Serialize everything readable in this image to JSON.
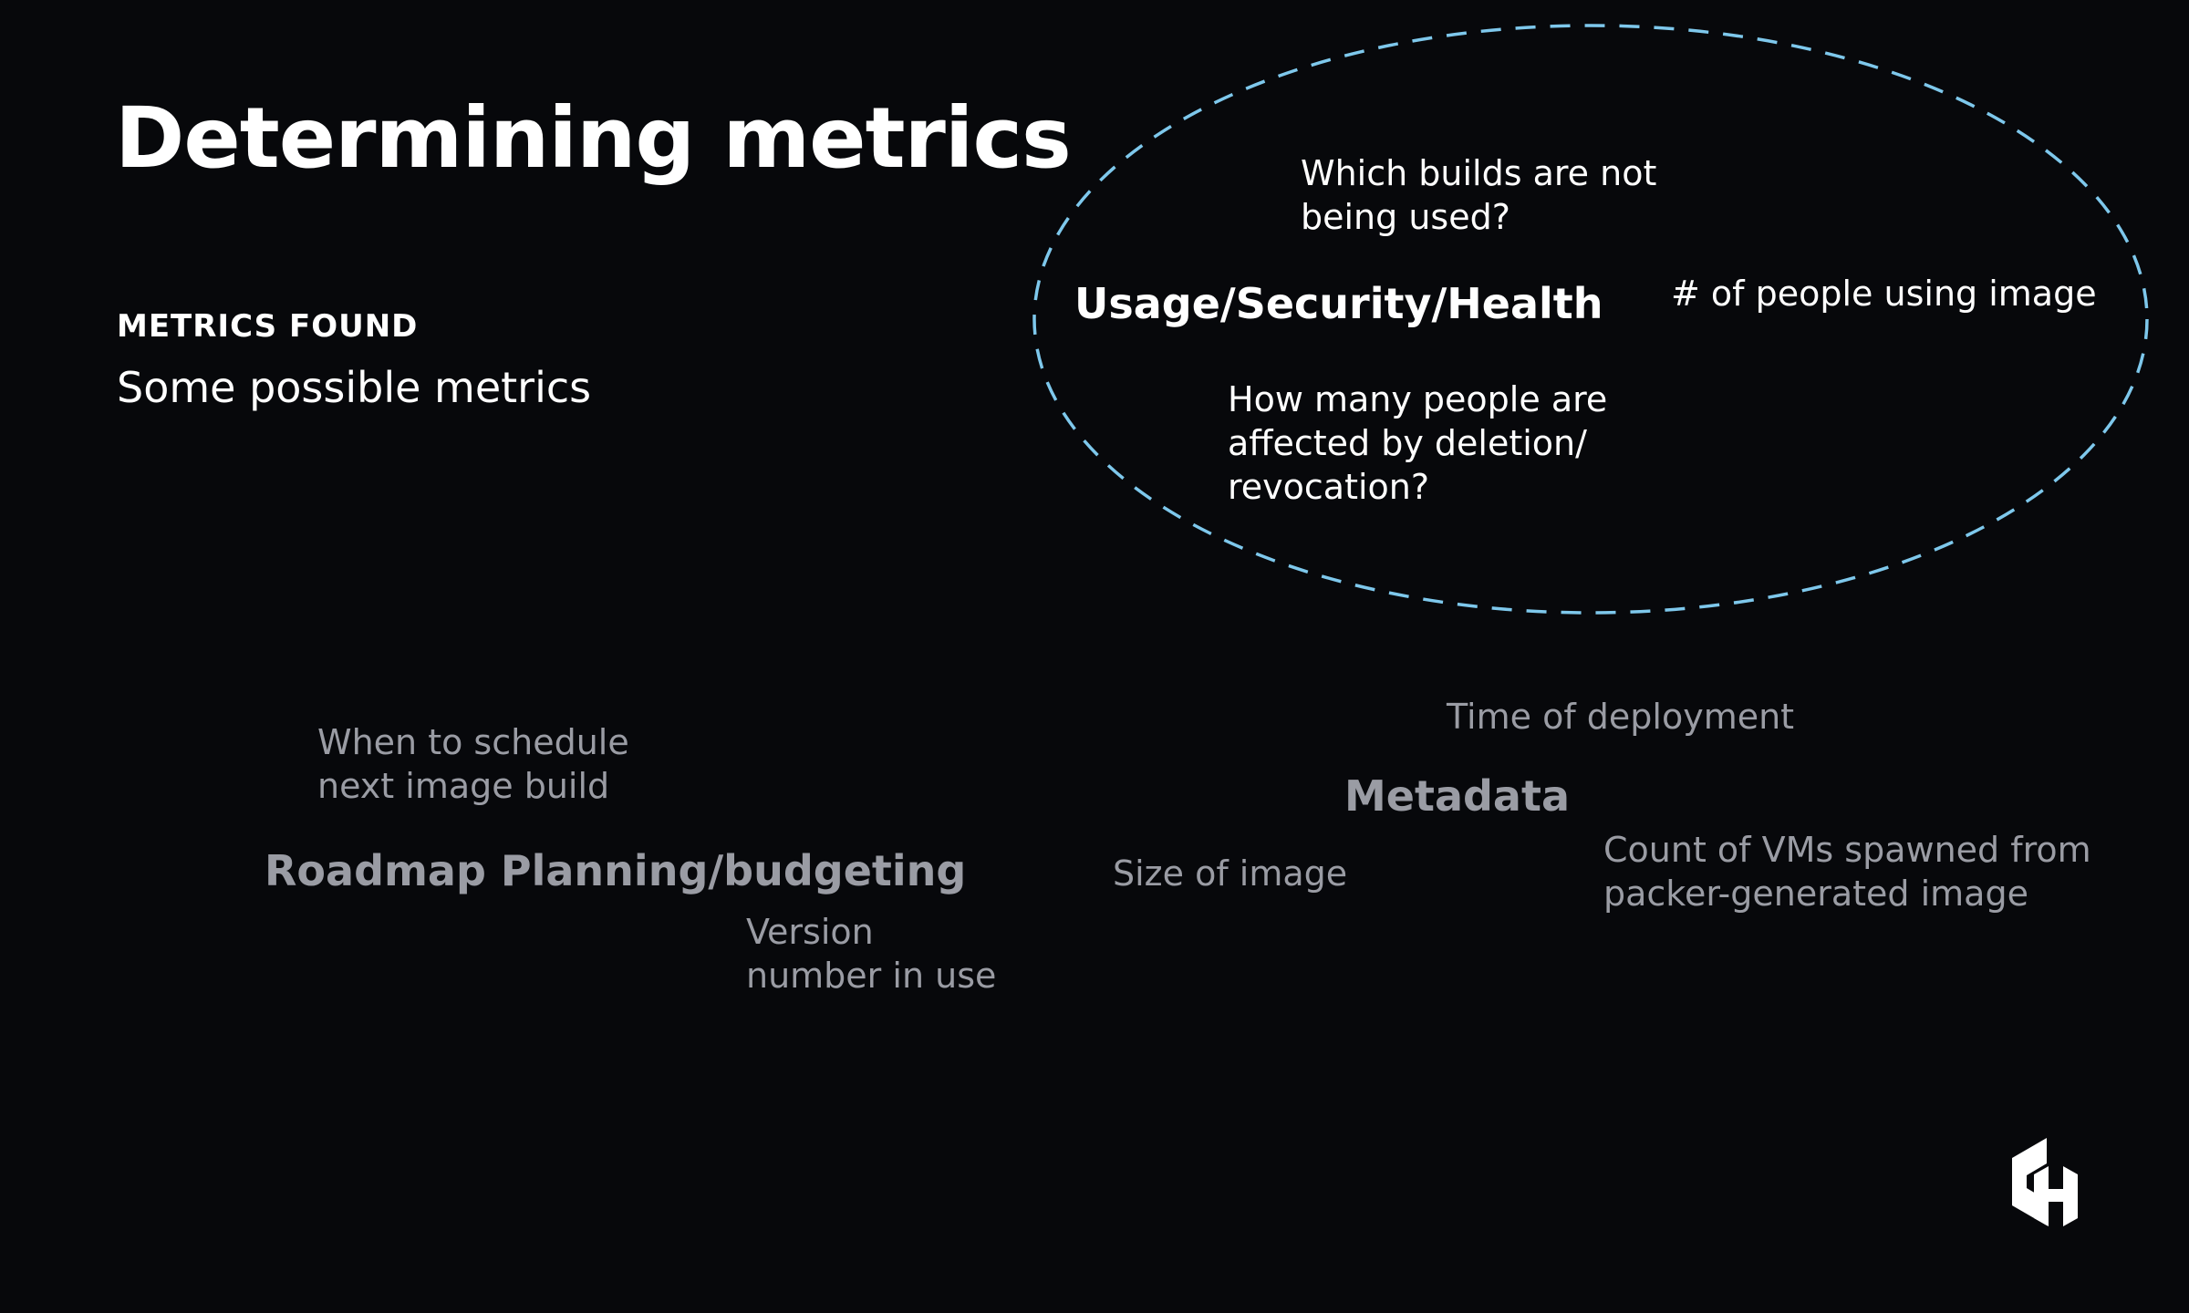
{
  "slide": {
    "title": "Determining metrics",
    "section_label": "METRICS FOUND",
    "section_subtitle": "Some possible metrics"
  },
  "usage_group": {
    "heading": "Usage/Security/Health",
    "items": [
      "Which builds are not\nbeing used?",
      "# of people using image",
      "How many people are\naffected by deletion/\nrevocation?"
    ]
  },
  "roadmap_group": {
    "heading": "Roadmap Planning/budgeting",
    "items": [
      "When to schedule\nnext image build",
      "Version\nnumber in use"
    ]
  },
  "metadata_group": {
    "heading": "Metadata",
    "items": [
      "Time of deployment",
      "Size of image",
      "Count of VMs spawned from\npacker-generated image"
    ]
  },
  "colors": {
    "background": "#07080b",
    "highlight_ellipse": "#7ec8ec",
    "active_text": "#ffffff",
    "muted_text": "#9a9ca4"
  },
  "icons": {
    "brand_logo": "hashicorp-logo-icon"
  }
}
